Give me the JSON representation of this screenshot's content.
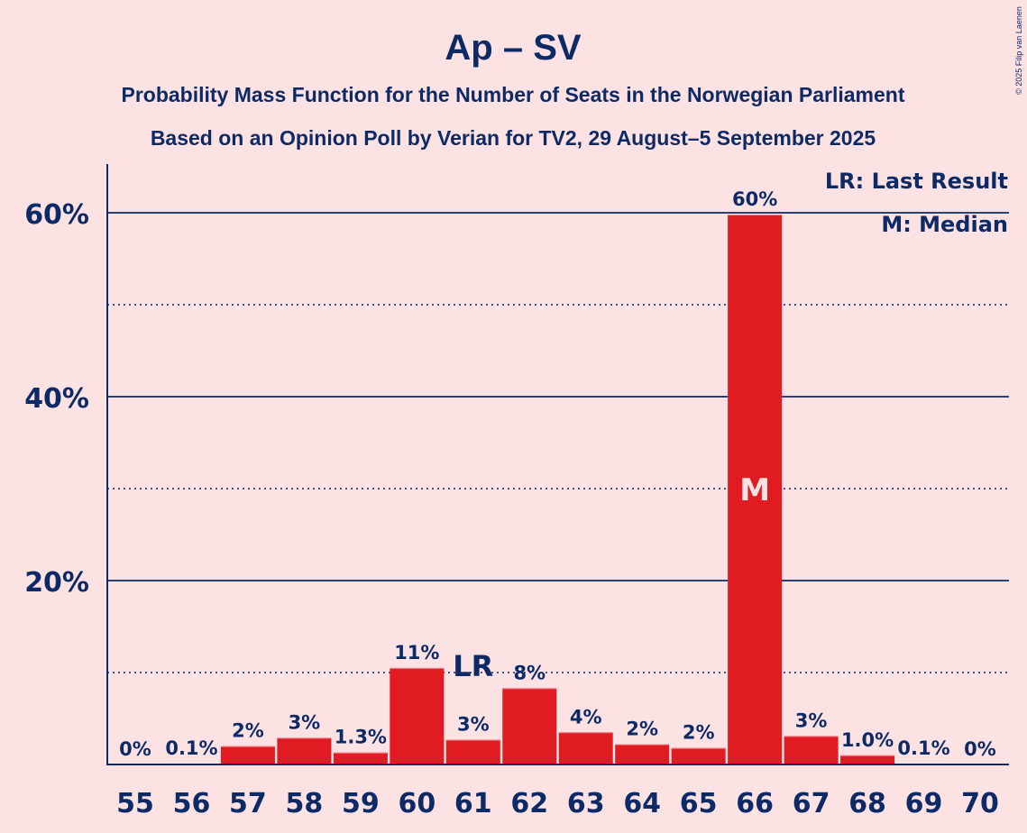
{
  "chart_data": {
    "type": "bar",
    "title": "Ap – SV",
    "subtitle1": "Probability Mass Function for the Number of Seats in the Norwegian Parliament",
    "subtitle2": "Based on an Opinion Poll by Verian for TV2, 29 August–5 September 2025",
    "copyright": "© 2025 Filip van Laenen",
    "xlabel": "",
    "ylabel": "",
    "ylim": [
      0,
      65
    ],
    "yticks_major": [
      20,
      40,
      60
    ],
    "yticks_major_labels": [
      "20%",
      "40%",
      "60%"
    ],
    "yticks_minor": [
      10,
      30,
      50
    ],
    "grid": true,
    "categories": [
      "55",
      "56",
      "57",
      "58",
      "59",
      "60",
      "61",
      "62",
      "63",
      "64",
      "65",
      "66",
      "67",
      "68",
      "69",
      "70"
    ],
    "values": [
      0,
      0.1,
      2.0,
      2.9,
      1.3,
      10.5,
      2.7,
      8.3,
      3.5,
      2.2,
      1.8,
      59.8,
      3.1,
      1.0,
      0.1,
      0
    ],
    "value_labels": [
      "0%",
      "0.1%",
      "2%",
      "3%",
      "1.3%",
      "11%",
      "3%",
      "8%",
      "4%",
      "2%",
      "2%",
      "60%",
      "3%",
      "1.0%",
      "0.1%",
      "0%"
    ],
    "last_result_seat": "61",
    "last_result_marker": "LR",
    "median_seat": "66",
    "median_marker": "M",
    "legend": [
      "LR: Last Result",
      "M: Median"
    ],
    "legend_position": "top-right",
    "colors": {
      "bar": "#e01b22",
      "text": "#0c2a66",
      "background": "#fde2e4",
      "marker_on_bar": "#fde2e4"
    }
  }
}
